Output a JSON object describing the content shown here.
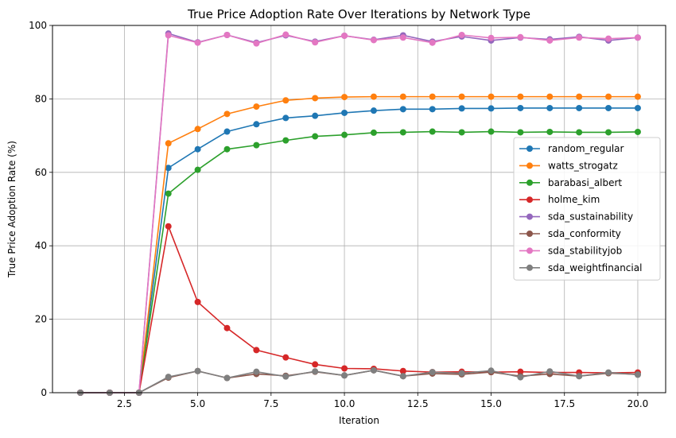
{
  "chart_data": {
    "type": "line",
    "title": "True Price Adoption Rate Over Iterations by Network Type",
    "xlabel": "Iteration",
    "ylabel": "True Price Adoption Rate (%)",
    "xlim": [
      0.05,
      20.95
    ],
    "ylim": [
      0,
      100
    ],
    "xticks": [
      2.5,
      5.0,
      7.5,
      10.0,
      12.5,
      15.0,
      17.5,
      20.0
    ],
    "xtick_labels": [
      "2.5",
      "5.0",
      "7.5",
      "10.0",
      "12.5",
      "15.0",
      "17.5",
      "20.0"
    ],
    "yticks": [
      0,
      20,
      40,
      60,
      80,
      100
    ],
    "ytick_labels": [
      "0",
      "20",
      "40",
      "60",
      "80",
      "100"
    ],
    "grid": true,
    "legend_position": "center-right",
    "x": [
      1,
      2,
      3,
      4,
      5,
      6,
      7,
      8,
      9,
      10,
      11,
      12,
      13,
      14,
      15,
      16,
      17,
      18,
      19,
      20
    ],
    "series": [
      {
        "name": "random_regular",
        "color": "#1f77b4",
        "values": [
          0,
          0,
          0,
          61.2,
          66.3,
          71.1,
          73.1,
          74.8,
          75.4,
          76.2,
          76.8,
          77.2,
          77.2,
          77.4,
          77.4,
          77.5,
          77.5,
          77.5,
          77.5,
          77.5
        ]
      },
      {
        "name": "watts_strogatz",
        "color": "#ff7f0e",
        "values": [
          0,
          0,
          0,
          67.9,
          71.8,
          75.9,
          77.9,
          79.6,
          80.2,
          80.5,
          80.6,
          80.6,
          80.6,
          80.6,
          80.6,
          80.6,
          80.6,
          80.6,
          80.6,
          80.6
        ]
      },
      {
        "name": "barabasi_albert",
        "color": "#2ca02c",
        "values": [
          0,
          0,
          0,
          54.2,
          60.7,
          66.3,
          67.4,
          68.7,
          69.8,
          70.2,
          70.8,
          70.9,
          71.1,
          70.9,
          71.1,
          70.9,
          71.0,
          70.9,
          70.9,
          71.0
        ]
      },
      {
        "name": "holme_kim",
        "color": "#d62728",
        "values": [
          0,
          0,
          0,
          45.3,
          24.7,
          17.6,
          11.6,
          9.6,
          7.7,
          6.6,
          6.5,
          5.9,
          5.6,
          5.7,
          5.6,
          5.7,
          5.5,
          5.5,
          5.4,
          5.5
        ]
      },
      {
        "name": "sda_sustainability",
        "color": "#9467bd",
        "values": [
          0,
          0,
          0,
          97.8,
          95.4,
          97.4,
          95.3,
          97.3,
          95.6,
          97.2,
          96.1,
          97.3,
          95.6,
          97.0,
          95.9,
          96.7,
          96.2,
          96.9,
          95.9,
          96.7
        ]
      },
      {
        "name": "sda_conformity",
        "color": "#8c564b",
        "values": [
          0,
          0,
          0,
          4.1,
          5.9,
          4.0,
          5.1,
          4.6,
          5.7,
          4.7,
          6.1,
          4.5,
          5.2,
          5.0,
          5.6,
          4.5,
          5.1,
          4.5,
          5.3,
          5.0
        ]
      },
      {
        "name": "sda_stabilityjob",
        "color": "#e377c2",
        "values": [
          0,
          0,
          0,
          97.3,
          95.3,
          97.4,
          95.1,
          97.5,
          95.4,
          97.2,
          96.0,
          96.7,
          95.3,
          97.4,
          96.6,
          96.8,
          95.9,
          96.7,
          96.4,
          96.7
        ]
      },
      {
        "name": "sda_weightfinancial",
        "color": "#7f7f7f",
        "values": [
          0,
          0,
          0,
          4.3,
          5.9,
          4.0,
          5.7,
          4.4,
          5.8,
          4.7,
          6.1,
          4.5,
          5.6,
          5.3,
          6.0,
          4.2,
          5.8,
          4.5,
          5.5,
          4.9
        ]
      }
    ]
  }
}
